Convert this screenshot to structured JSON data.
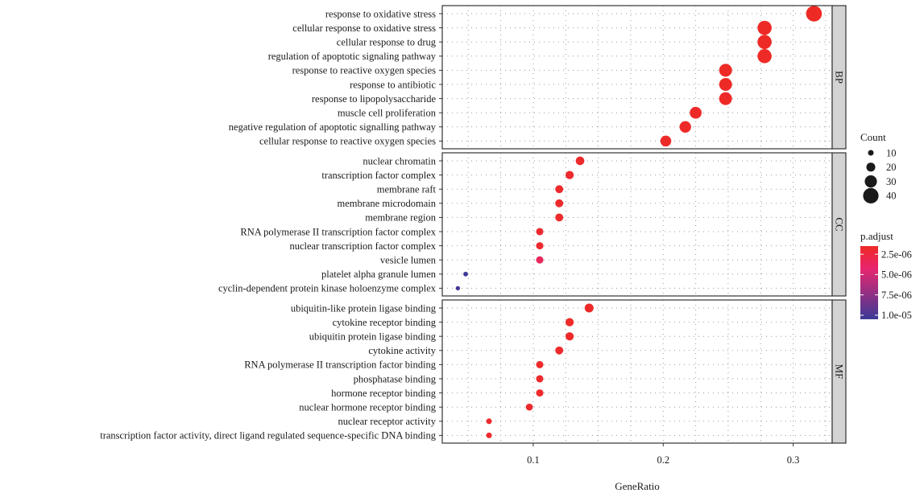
{
  "chart_data": {
    "type": "scatter",
    "xlabel": "GeneRatio",
    "ylabel": "",
    "xlim": [
      0.03,
      0.33
    ],
    "xticks": [
      0.1,
      0.2,
      0.3
    ],
    "xtick_labels": [
      "0.1",
      "0.2",
      "0.3"
    ],
    "grid": true,
    "legend_placement": "right",
    "panels": [
      {
        "strip": "BP",
        "terms": [
          {
            "label": "response to oxidative stress",
            "x": 0.316,
            "count": 41,
            "p_adjust": 1.5e-06
          },
          {
            "label": "cellular response to oxidative stress",
            "x": 0.278,
            "count": 36,
            "p_adjust": 1.6e-06
          },
          {
            "label": "cellular response to drug",
            "x": 0.278,
            "count": 36,
            "p_adjust": 1.6e-06
          },
          {
            "label": "regulation of apoptotic signaling pathway",
            "x": 0.278,
            "count": 36,
            "p_adjust": 1.6e-06
          },
          {
            "label": "response to reactive oxygen species",
            "x": 0.248,
            "count": 32,
            "p_adjust": 1.6e-06
          },
          {
            "label": "response to antibiotic",
            "x": 0.248,
            "count": 32,
            "p_adjust": 1.6e-06
          },
          {
            "label": "response to lipopolysaccharide",
            "x": 0.248,
            "count": 32,
            "p_adjust": 1.6e-06
          },
          {
            "label": "muscle cell proliferation",
            "x": 0.225,
            "count": 29,
            "p_adjust": 1.7e-06
          },
          {
            "label": "negative regulation of apoptotic signalling pathway",
            "x": 0.217,
            "count": 28,
            "p_adjust": 1.7e-06
          },
          {
            "label": "cellular response to reactive oxygen species",
            "x": 0.202,
            "count": 26,
            "p_adjust": 1.7e-06
          }
        ]
      },
      {
        "strip": "CC",
        "terms": [
          {
            "label": "nuclear chromatin",
            "x": 0.136,
            "count": 19,
            "p_adjust": 1.8e-06
          },
          {
            "label": "transcription factor complex",
            "x": 0.128,
            "count": 18,
            "p_adjust": 1.8e-06
          },
          {
            "label": "membrane raft",
            "x": 0.12,
            "count": 17,
            "p_adjust": 1.8e-06
          },
          {
            "label": "membrane microdomain",
            "x": 0.12,
            "count": 17,
            "p_adjust": 1.8e-06
          },
          {
            "label": "membrane region",
            "x": 0.12,
            "count": 17,
            "p_adjust": 1.8e-06
          },
          {
            "label": "RNA polymerase II transcription factor complex",
            "x": 0.105,
            "count": 15,
            "p_adjust": 1.9e-06
          },
          {
            "label": "nuclear transcription factor complex",
            "x": 0.105,
            "count": 15,
            "p_adjust": 1.9e-06
          },
          {
            "label": "vesicle lumen",
            "x": 0.105,
            "count": 15,
            "p_adjust": 3.5e-06
          },
          {
            "label": "platelet alpha granule lumen",
            "x": 0.048,
            "count": 7,
            "p_adjust": 1.05e-05
          },
          {
            "label": "cyclin-dependent protein kinase holoenzyme complex",
            "x": 0.042,
            "count": 6,
            "p_adjust": 1e-05
          }
        ]
      },
      {
        "strip": "MF",
        "terms": [
          {
            "label": "ubiquitin-like protein ligase binding",
            "x": 0.143,
            "count": 20,
            "p_adjust": 1.7e-06
          },
          {
            "label": "cytokine receptor binding",
            "x": 0.128,
            "count": 18,
            "p_adjust": 1.7e-06
          },
          {
            "label": "ubiquitin protein ligase binding",
            "x": 0.128,
            "count": 18,
            "p_adjust": 1.7e-06
          },
          {
            "label": "cytokine activity",
            "x": 0.12,
            "count": 17,
            "p_adjust": 1.8e-06
          },
          {
            "label": "RNA polymerase II transcription factor binding",
            "x": 0.105,
            "count": 15,
            "p_adjust": 1.8e-06
          },
          {
            "label": "phosphatase binding",
            "x": 0.105,
            "count": 15,
            "p_adjust": 1.8e-06
          },
          {
            "label": "hormone receptor binding",
            "x": 0.105,
            "count": 15,
            "p_adjust": 1.8e-06
          },
          {
            "label": "nuclear hormone receptor binding",
            "x": 0.097,
            "count": 14,
            "p_adjust": 1.8e-06
          },
          {
            "label": "nuclear receptor activity",
            "x": 0.066,
            "count": 10,
            "p_adjust": 1.9e-06
          },
          {
            "label": "transcription factor activity, direct ligand regulated sequence-specific DNA binding",
            "x": 0.066,
            "count": 10,
            "p_adjust": 1.9e-06
          }
        ]
      }
    ],
    "size_legend": {
      "title": "Count",
      "values": [
        10,
        20,
        30,
        40
      ],
      "labels": [
        "10",
        "20",
        "30",
        "40"
      ]
    },
    "color_legend": {
      "title": "p.adjust",
      "range": [
        1.5e-06,
        1.05e-05
      ],
      "ticks": [
        2.5e-06,
        5e-06,
        7.5e-06,
        1e-05
      ],
      "tick_labels": [
        "2.5e-06",
        "5.0e-06",
        "7.5e-06",
        "1.0e-05"
      ],
      "low_color": "#ee2a24",
      "mid_color": "#e8266e",
      "high_color": "#3b3a98"
    }
  }
}
